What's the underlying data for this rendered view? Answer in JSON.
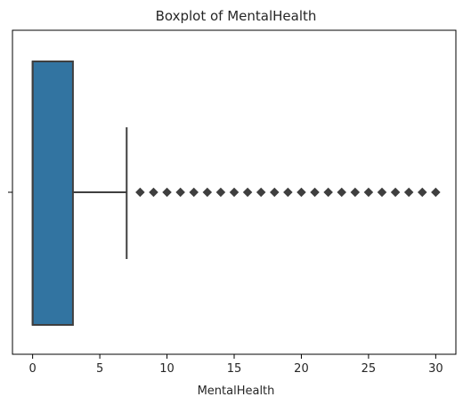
{
  "chart_data": {
    "type": "boxplot",
    "orientation": "horizontal",
    "title": "Boxplot of MentalHealth",
    "xlabel": "MentalHealth",
    "ylabel": "",
    "xlim": [
      -1.5,
      31.5
    ],
    "xticks": [
      0,
      5,
      10,
      15,
      20,
      25,
      30
    ],
    "xtick_labels": [
      "0",
      "5",
      "10",
      "15",
      "20",
      "25",
      "30"
    ],
    "grid": false,
    "series": [
      {
        "min": 0,
        "q1": 0,
        "median": 0,
        "q3": 3,
        "whisker_low": 0,
        "whisker_high": 7,
        "outliers": [
          8,
          9,
          10,
          11,
          12,
          13,
          14,
          15,
          16,
          17,
          18,
          19,
          20,
          21,
          22,
          23,
          24,
          25,
          26,
          27,
          28,
          29,
          30
        ],
        "box_color": "#3274a1",
        "line_color": "#3f3f3f"
      }
    ]
  }
}
